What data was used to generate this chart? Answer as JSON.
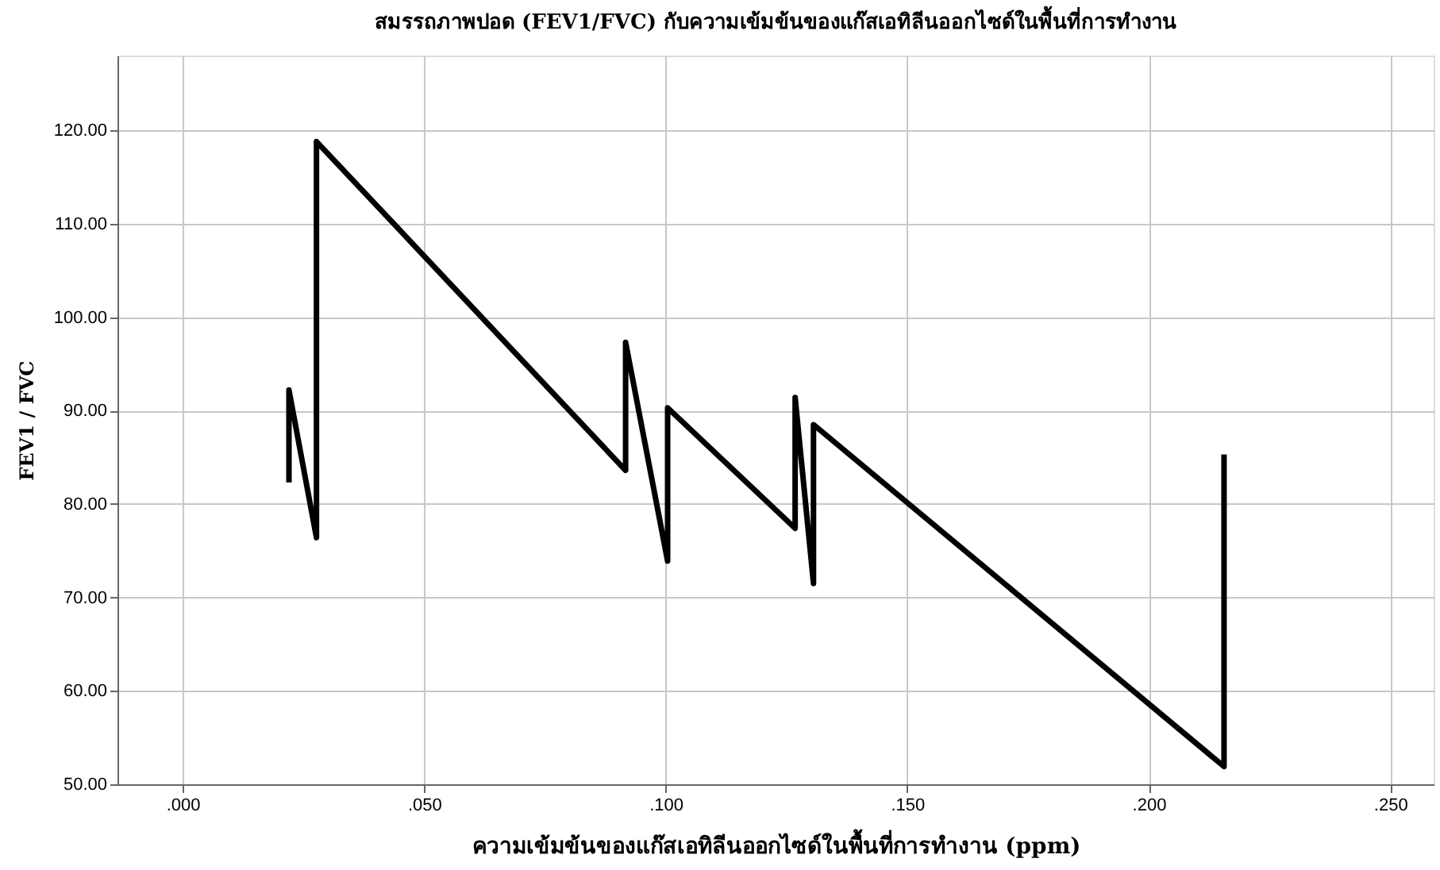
{
  "chart_data": {
    "type": "line",
    "title": "สมรรถภาพปอด (FEV1/FVC) กับความเข้มข้นของแก๊สเอทิลีนออกไซด์ในพื้นที่การทำงาน",
    "xlabel": "ความเข้มข้นของแก๊สเอทิลีนออกไซด์ในพื้นที่การทำงาน (ppm)",
    "ylabel": "FEV1 / FVC",
    "x": [
      0.022,
      0.022,
      0.0277,
      0.0277,
      0.0917,
      0.0917,
      0.1004,
      0.1004,
      0.1268,
      0.1268,
      0.1306,
      0.1306,
      0.2156,
      0.2156
    ],
    "series": [
      {
        "color": "#000000",
        "values": [
          82.3,
          92.2,
          76.4,
          118.8,
          83.6,
          97.3,
          73.9,
          90.3,
          77.4,
          91.4,
          71.5,
          88.5,
          51.9,
          85.3
        ]
      }
    ],
    "xlim": [
      -0.0135,
      0.259
    ],
    "ylim": [
      50,
      128
    ],
    "xticks": [
      {
        "value": 0,
        "label": ".000"
      },
      {
        "value": 0.05,
        "label": ".050"
      },
      {
        "value": 0.1,
        "label": ".100"
      },
      {
        "value": 0.15,
        "label": ".150"
      },
      {
        "value": 0.2,
        "label": ".200"
      },
      {
        "value": 0.25,
        "label": ".250"
      }
    ],
    "yticks": [
      {
        "value": 50,
        "label": "50.00"
      },
      {
        "value": 60,
        "label": "60.00"
      },
      {
        "value": 70,
        "label": "70.00"
      },
      {
        "value": 80,
        "label": "80.00"
      },
      {
        "value": 90,
        "label": "90.00"
      },
      {
        "value": 100,
        "label": "100.00"
      },
      {
        "value": 110,
        "label": "110.00"
      },
      {
        "value": 120,
        "label": "120.00"
      }
    ],
    "grid": true,
    "marker": "none",
    "line_style": "solid"
  }
}
